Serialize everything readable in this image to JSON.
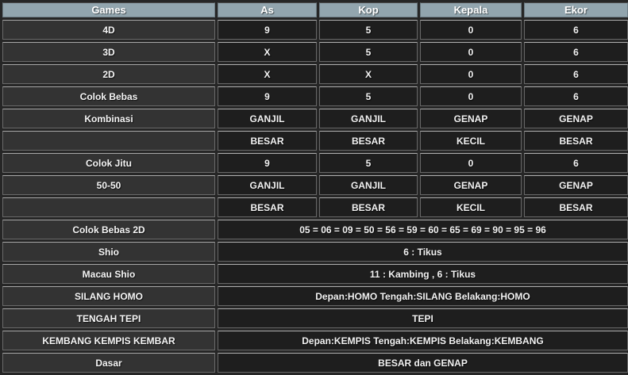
{
  "table": {
    "columns": [
      "Games",
      "As",
      "Kop",
      "Kepala",
      "Ekor"
    ],
    "rows": [
      {
        "label": "4D",
        "cells": [
          "9",
          "5",
          "0",
          "6"
        ]
      },
      {
        "label": "3D",
        "cells": [
          "X",
          "5",
          "0",
          "6"
        ]
      },
      {
        "label": "2D",
        "cells": [
          "X",
          "X",
          "0",
          "6"
        ]
      },
      {
        "label": "Colok Bebas",
        "cells": [
          "9",
          "5",
          "0",
          "6"
        ]
      },
      {
        "label": "Kombinasi",
        "cells": [
          "GANJIL",
          "GANJIL",
          "GENAP",
          "GENAP"
        ]
      },
      {
        "label": "",
        "cells": [
          "BESAR",
          "BESAR",
          "KECIL",
          "BESAR"
        ]
      },
      {
        "label": "Colok Jitu",
        "cells": [
          "9",
          "5",
          "0",
          "6"
        ]
      },
      {
        "label": "50-50",
        "cells": [
          "GANJIL",
          "GANJIL",
          "GENAP",
          "GENAP"
        ]
      },
      {
        "label": "",
        "cells": [
          "BESAR",
          "BESAR",
          "KECIL",
          "BESAR"
        ]
      },
      {
        "label": "Colok Bebas 2D",
        "span": "05 = 06 = 09 = 50 = 56 = 59 = 60 = 65 = 69 = 90 = 95 = 96"
      },
      {
        "label": "Shio",
        "span": "6 : Tikus"
      },
      {
        "label": "Macau Shio",
        "span": "11 : Kambing , 6 : Tikus"
      },
      {
        "label": "SILANG HOMO",
        "span": "Depan:HOMO Tengah:SILANG Belakang:HOMO"
      },
      {
        "label": "TENGAH TEPI",
        "span": "TEPI"
      },
      {
        "label": "KEMBANG KEMPIS KEMBAR",
        "span": "Depan:KEMPIS Tengah:KEMPIS Belakang:KEMBANG"
      },
      {
        "label": "Dasar",
        "span": "BESAR dan GENAP"
      }
    ],
    "colors": {
      "header_bg": "#92a5ae",
      "games_cell_bg": "#333333",
      "value_cell_bg": "#1e1e1e",
      "gap_bg": "#262626",
      "border": "#6e6e6e",
      "text": "#f5f5f5"
    }
  }
}
